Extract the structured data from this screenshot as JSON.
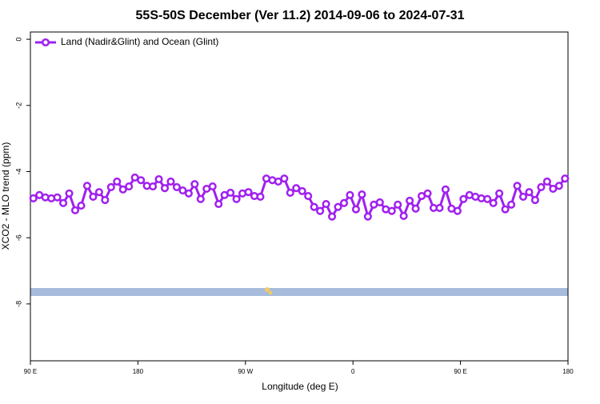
{
  "chart_data": {
    "type": "line",
    "title": "55S-50S December (Ver 11.2)   2014-09-06 to 2024-07-31",
    "xlabel": "Longitude (deg E)",
    "ylabel": "XCO2 - MLO trend (ppm)",
    "xlim": [
      90,
      540
    ],
    "xticks": [
      {
        "value": 90,
        "label": "90 E"
      },
      {
        "value": 180,
        "label": "180"
      },
      {
        "value": 270,
        "label": "90 W"
      },
      {
        "value": 360,
        "label": "0"
      },
      {
        "value": 450,
        "label": "90 E"
      },
      {
        "value": 540,
        "label": "180"
      }
    ],
    "ylim": [
      -9.72,
      0.22
    ],
    "yticks": [
      0,
      -2,
      -4,
      -6,
      -8
    ],
    "legend": "top-left",
    "x": [
      92.5,
      97.5,
      102.5,
      107.5,
      112.5,
      117.5,
      122.5,
      127.5,
      132.5,
      137.5,
      142.5,
      147.5,
      152.5,
      157.5,
      162.5,
      167.5,
      172.5,
      177.5,
      182.5,
      187.5,
      192.5,
      197.5,
      202.5,
      207.5,
      212.5,
      217.5,
      222.5,
      227.5,
      232.5,
      237.5,
      242.5,
      247.5,
      252.5,
      257.5,
      262.5,
      267.5,
      272.5,
      277.5,
      282.5,
      287.5,
      292.5,
      297.5,
      302.5,
      307.5,
      312.5,
      317.5,
      322.5,
      327.5,
      332.5,
      337.5,
      342.5,
      347.5,
      352.5,
      357.5,
      362.5,
      367.5,
      372.5,
      377.5,
      382.5,
      387.5,
      392.5,
      397.5,
      402.5,
      407.5,
      412.5,
      417.5,
      422.5,
      427.5,
      432.5,
      437.5,
      442.5,
      447.5,
      452.5,
      457.5,
      462.5,
      467.5,
      472.5,
      477.5,
      482.5,
      487.5,
      492.5,
      497.5,
      502.5,
      507.5,
      512.5,
      517.5,
      522.5,
      527.5,
      532.5,
      537.5
    ],
    "series": [
      {
        "name": "Land (Nadir&Glint) and Ocean (Glint)",
        "color": "#a020f0",
        "values": [
          -4.81,
          -4.71,
          -4.78,
          -4.81,
          -4.78,
          -4.95,
          -4.66,
          -5.17,
          -5.03,
          -4.43,
          -4.76,
          -4.62,
          -4.86,
          -4.47,
          -4.3,
          -4.54,
          -4.45,
          -4.18,
          -4.26,
          -4.43,
          -4.45,
          -4.23,
          -4.5,
          -4.3,
          -4.47,
          -4.57,
          -4.66,
          -4.38,
          -4.83,
          -4.52,
          -4.45,
          -4.98,
          -4.71,
          -4.64,
          -4.83,
          -4.66,
          -4.62,
          -4.74,
          -4.76,
          -4.21,
          -4.26,
          -4.3,
          -4.21,
          -4.64,
          -4.5,
          -4.59,
          -4.74,
          -5.07,
          -5.19,
          -4.98,
          -5.36,
          -5.07,
          -4.95,
          -4.71,
          -5.14,
          -4.69,
          -5.36,
          -5.0,
          -4.93,
          -5.14,
          -5.19,
          -5.0,
          -5.34,
          -4.88,
          -5.12,
          -4.74,
          -4.66,
          -5.1,
          -5.1,
          -4.54,
          -5.12,
          -5.19,
          -4.83,
          -4.71,
          -4.76,
          -4.81,
          -4.83,
          -4.95,
          -4.66,
          -5.14,
          -5.0,
          -4.43,
          -4.76,
          -4.62,
          -4.86,
          -4.47,
          -4.3,
          -4.52,
          -4.43,
          -4.21
        ]
      }
    ]
  }
}
